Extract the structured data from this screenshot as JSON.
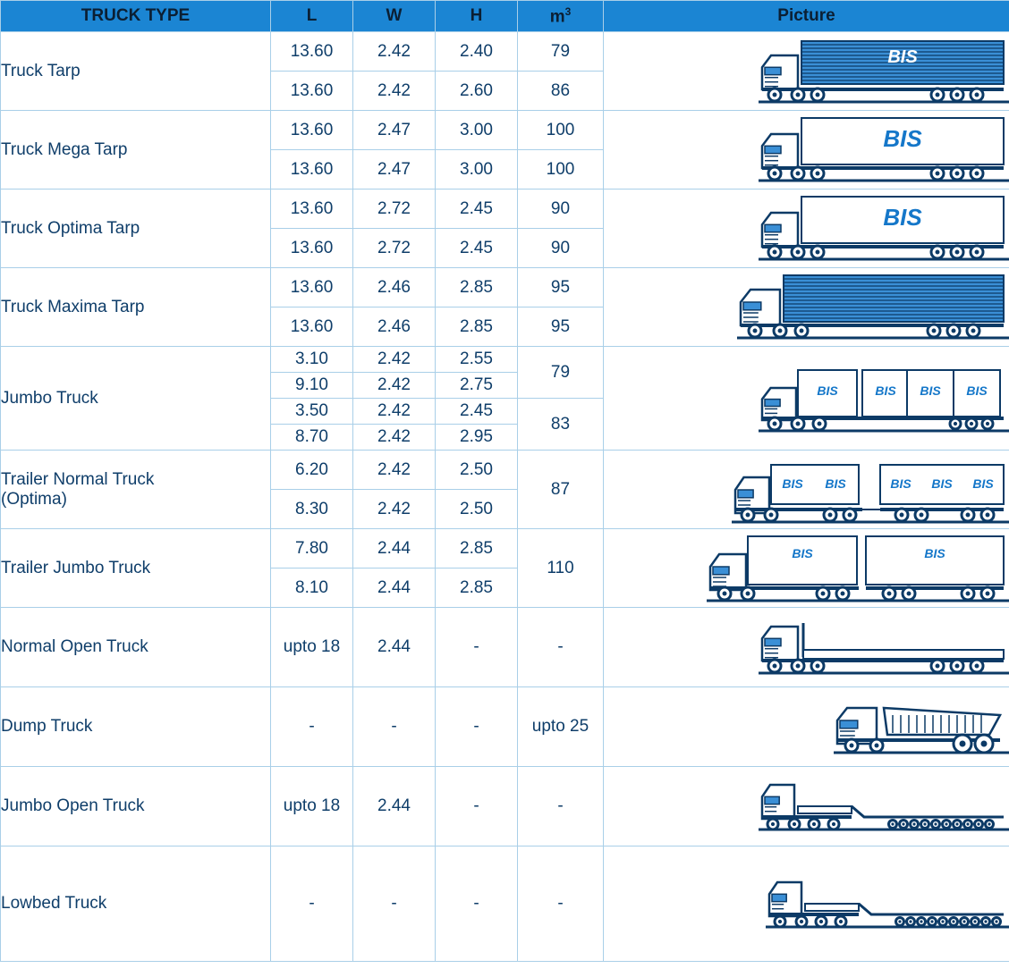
{
  "header": {
    "truck_type": "TRUCK TYPE",
    "l": "L",
    "w": "W",
    "h": "H",
    "m_base": "m",
    "m_sup": "3",
    "picture": "Picture"
  },
  "colors": {
    "header_bg": "#1b85d3",
    "text": "#0f3e6a",
    "grid": "#a9cfe8",
    "truck_line": "#0c3a66",
    "truck_fill": "#3a8fd6",
    "logo": "#1577c9"
  },
  "logo_text": "BIS",
  "rows": [
    {
      "type": "Truck Tarp",
      "m3": [
        "79",
        "86"
      ],
      "lines": [
        [
          "13.60",
          "2.42",
          "2.40"
        ],
        [
          "13.60",
          "2.42",
          "2.60"
        ]
      ],
      "icon": "tarp-truck-icon"
    },
    {
      "type": "Truck Mega Tarp",
      "m3": [
        "100",
        "100"
      ],
      "lines": [
        [
          "13.60",
          "2.47",
          "3.00"
        ],
        [
          "13.60",
          "2.47",
          "3.00"
        ]
      ],
      "icon": "mega-tarp-truck-icon"
    },
    {
      "type": "Truck Optima Tarp",
      "m3": [
        "90",
        "90"
      ],
      "lines": [
        [
          "13.60",
          "2.72",
          "2.45"
        ],
        [
          "13.60",
          "2.72",
          "2.45"
        ]
      ],
      "icon": "optima-tarp-truck-icon"
    },
    {
      "type": "Truck Maxima Tarp",
      "m3": [
        "95",
        "95"
      ],
      "lines": [
        [
          "13.60",
          "2.46",
          "2.85"
        ],
        [
          "13.60",
          "2.46",
          "2.85"
        ]
      ],
      "icon": "maxima-tarp-truck-icon"
    },
    {
      "type": "Jumbo Truck",
      "m3": [
        "79",
        "83"
      ],
      "lines": [
        [
          "3.10",
          "2.42",
          "2.55"
        ],
        [
          "9.10",
          "2.42",
          "2.75"
        ],
        [
          "3.50",
          "2.42",
          "2.45"
        ],
        [
          "8.70",
          "2.42",
          "2.95"
        ]
      ],
      "icon": "jumbo-truck-icon"
    },
    {
      "type_line1": "Trailer Normal Truck",
      "type_line2": "(Optima)",
      "m3": [
        "87"
      ],
      "lines": [
        [
          "6.20",
          "2.42",
          "2.50"
        ],
        [
          "8.30",
          "2.42",
          "2.50"
        ]
      ],
      "icon": "trailer-normal-truck-icon"
    },
    {
      "type": "Trailer Jumbo Truck",
      "m3": [
        "110"
      ],
      "lines": [
        [
          "7.80",
          "2.44",
          "2.85"
        ],
        [
          "8.10",
          "2.44",
          "2.85"
        ]
      ],
      "icon": "trailer-jumbo-truck-icon"
    },
    {
      "type": "Normal Open Truck",
      "m3": [
        "-"
      ],
      "lines": [
        [
          "upto 18",
          "2.44",
          "-"
        ]
      ],
      "icon": "normal-open-truck-icon"
    },
    {
      "type": "Dump Truck",
      "m3": [
        "upto 25"
      ],
      "lines": [
        [
          "-",
          "-",
          "-"
        ]
      ],
      "icon": "dump-truck-icon"
    },
    {
      "type": "Jumbo Open Truck",
      "m3": [
        "-"
      ],
      "lines": [
        [
          "upto 18",
          "2.44",
          "-"
        ]
      ],
      "icon": "jumbo-open-truck-icon"
    },
    {
      "type": "Lowbed Truck",
      "m3": [
        "-"
      ],
      "lines": [
        [
          "-",
          "-",
          "-"
        ]
      ],
      "icon": "lowbed-truck-icon"
    }
  ]
}
